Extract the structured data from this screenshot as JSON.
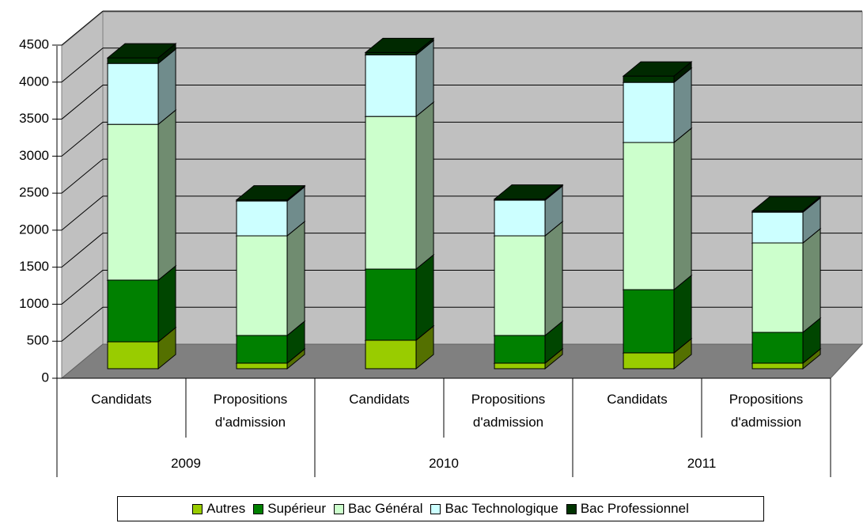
{
  "chart_data": {
    "type": "bar",
    "stacked": true,
    "three_d": true,
    "categories": [
      "Candidats",
      "Propositions d'admission",
      "Candidats",
      "Propositions d'admission",
      "Candidats",
      "Propositions d'admission"
    ],
    "groups": [
      "2009",
      "2010",
      "2011"
    ],
    "series": [
      {
        "name": "Autres",
        "color": "#99cc00",
        "values": [
          363,
          75,
          385,
          75,
          214,
          75
        ]
      },
      {
        "name": "Supérieur",
        "color": "#008000",
        "values": [
          834,
          374,
          961,
          374,
          854,
          416
        ]
      },
      {
        "name": "Bac Général",
        "color": "#ccffcc",
        "values": [
          2104,
          1346,
          2062,
          1346,
          1988,
          1208
        ]
      },
      {
        "name": "Bac Technologique",
        "color": "#ccffff",
        "values": [
          823,
          470,
          833,
          481,
          812,
          416
        ]
      },
      {
        "name": "Bac Professionnel",
        "color": "#003300",
        "values": [
          75,
          15,
          30,
          15,
          85,
          15
        ]
      }
    ],
    "ylim": [
      0,
      4500
    ],
    "yticks": [
      0,
      500,
      1000,
      1500,
      2000,
      2500,
      3000,
      3500,
      4000,
      4500
    ],
    "grid": true,
    "legend": "bottom"
  }
}
